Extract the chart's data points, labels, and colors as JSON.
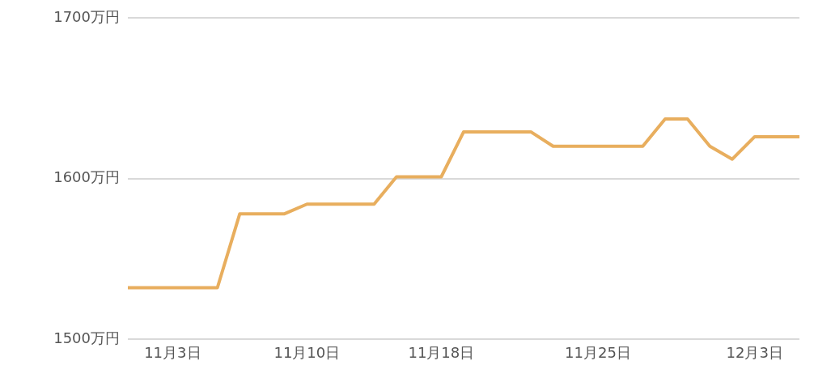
{
  "chart_data": {
    "type": "line",
    "categories": [
      null,
      null,
      "11月3日",
      null,
      null,
      null,
      null,
      null,
      "11月10日",
      null,
      null,
      null,
      null,
      null,
      "11月18日",
      null,
      null,
      null,
      null,
      null,
      null,
      "11月25日",
      null,
      null,
      null,
      null,
      null,
      null,
      "12月3日",
      null,
      null
    ],
    "series": [
      {
        "color": "#e8ae5e",
        "values": [
          1532,
          1532,
          1532,
          1532,
          1532,
          1578,
          1578,
          1578,
          1584,
          1584,
          1584,
          1584,
          1601,
          1601,
          1601,
          1629,
          1629,
          1629,
          1629,
          1620,
          1620,
          1620,
          1620,
          1620,
          1637,
          1637,
          1620,
          1612,
          1626,
          1626,
          1626
        ]
      }
    ],
    "ylim": [
      1500,
      1700
    ],
    "yticks": [
      {
        "value": 1500,
        "label": "1500万円"
      },
      {
        "value": 1600,
        "label": "1600万円"
      },
      {
        "value": 1700,
        "label": "1700万円"
      }
    ],
    "grid": "y",
    "legend": false,
    "marker": "none",
    "line_style": "solid"
  }
}
